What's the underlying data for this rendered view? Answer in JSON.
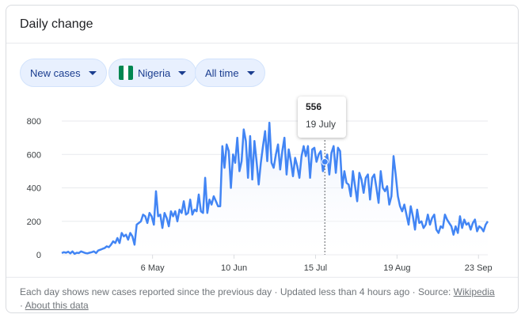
{
  "card": {
    "title": "Daily change"
  },
  "filters": {
    "metric": "New cases",
    "country": "Nigeria",
    "country_flag_colors": [
      "#008751",
      "#ffffff",
      "#008751"
    ],
    "range": "All time"
  },
  "tooltip": {
    "value": "556",
    "date": "19 July"
  },
  "footer": {
    "text": "Each day shows new cases reported since the previous day · Updated less than 4 hours ago ·",
    "source_label": "Source:",
    "source_link": "Wikipedia",
    "bullet": "·",
    "about_link": "About this data"
  },
  "colors": {
    "line": "#4285f4",
    "area_top": "#e8effd",
    "grid": "#e8eaed"
  },
  "chart_data": {
    "type": "area",
    "title": "",
    "xlabel": "",
    "ylabel": "",
    "ylim": [
      0,
      800
    ],
    "yticks": [
      "0",
      "200",
      "400",
      "600",
      "800"
    ],
    "xticks": [
      "6 May",
      "10 Jun",
      "15 Jul",
      "19 Aug",
      "23 Sep"
    ],
    "xrange": [
      "2020-03-28",
      "2020-09-27"
    ],
    "highlight": {
      "date": "2020-07-19",
      "value": 556
    },
    "series": [
      {
        "values": [
          10,
          15,
          12,
          18,
          8,
          20,
          5,
          12,
          10,
          20,
          15,
          10,
          8,
          12,
          15,
          20,
          10,
          25,
          30,
          35,
          40,
          50,
          45,
          60,
          80,
          70,
          100,
          70,
          130,
          110,
          120,
          90,
          130,
          110,
          60,
          180,
          190,
          200,
          240,
          230,
          190,
          250,
          230,
          180,
          380,
          230,
          240,
          160,
          250,
          220,
          170,
          260,
          230,
          260,
          200,
          270,
          250,
          320,
          240,
          250,
          330,
          240,
          270,
          260,
          360,
          260,
          250,
          460,
          250,
          330,
          300,
          350,
          320,
          290,
          290,
          650,
          520,
          660,
          620,
          400,
          600,
          550,
          700,
          500,
          560,
          750,
          680,
          460,
          710,
          450,
          680,
          560,
          420,
          550,
          650,
          740,
          560,
          790,
          550,
          520,
          600,
          660,
          510,
          620,
          700,
          480,
          630,
          560,
          470,
          580,
          530,
          460,
          590,
          650,
          590,
          650,
          460,
          630,
          640,
          556,
          600,
          620,
          500,
          550,
          600,
          480,
          610,
          650,
          490,
          640,
          620,
          400,
          500,
          430,
          420,
          350,
          500,
          410,
          320,
          490,
          450,
          370,
          460,
          480,
          330,
          460,
          480,
          400,
          310,
          500,
          400,
          380,
          410,
          300,
          350,
          590,
          480,
          350,
          290,
          260,
          300,
          240,
          180,
          290,
          230,
          150,
          270,
          190,
          200,
          160,
          180,
          240,
          180,
          220,
          240,
          150,
          130,
          170,
          160,
          240,
          210,
          190,
          170,
          120,
          170,
          130,
          230,
          160,
          210,
          180,
          190,
          150,
          190,
          210,
          140,
          170,
          160,
          140,
          180,
          200
        ]
      }
    ]
  }
}
